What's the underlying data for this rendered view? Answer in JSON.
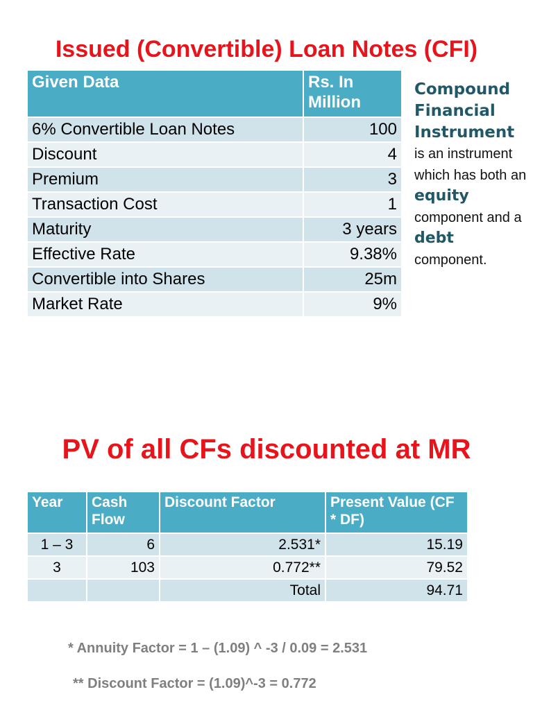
{
  "title_top": "Issued (Convertible) Loan Notes (CFI)",
  "given_table": {
    "header": [
      "Given Data",
      "Rs. In Million"
    ],
    "rows": [
      [
        "6% Convertible Loan Notes",
        "100"
      ],
      [
        "Discount",
        "4"
      ],
      [
        "Premium",
        "3"
      ],
      [
        "Transaction Cost",
        "1"
      ],
      [
        "Maturity",
        "3 years"
      ],
      [
        "Effective Rate",
        "9.38%"
      ],
      [
        "Convertible into Shares",
        "25m"
      ],
      [
        "Market Rate",
        "9%"
      ]
    ]
  },
  "side_note": {
    "heading": "Compound Financial Instrument",
    "text_1": "is an instrument which has both an",
    "keyword_1": "equity",
    "text_2": "component and a",
    "keyword_2": "debt",
    "text_3": "component."
  },
  "title_bottom": "PV of all CFs discounted at MR",
  "pv_table": {
    "header": [
      "Year",
      "Cash Flow",
      "Discount Factor",
      "Present Value (CF * DF)"
    ],
    "rows": [
      [
        "1 – 3",
        "6",
        "2.531*",
        "15.19"
      ],
      [
        "3",
        "103",
        "0.772**",
        "79.52"
      ],
      [
        null,
        null,
        "Total",
        "94.71"
      ]
    ]
  },
  "notes": [
    "* Annuity Factor = 1 – (1.09) ^ -3 / 0.09 = 2.531",
    "** Discount Factor  = (1.09)^-3 = 0.772"
  ]
}
